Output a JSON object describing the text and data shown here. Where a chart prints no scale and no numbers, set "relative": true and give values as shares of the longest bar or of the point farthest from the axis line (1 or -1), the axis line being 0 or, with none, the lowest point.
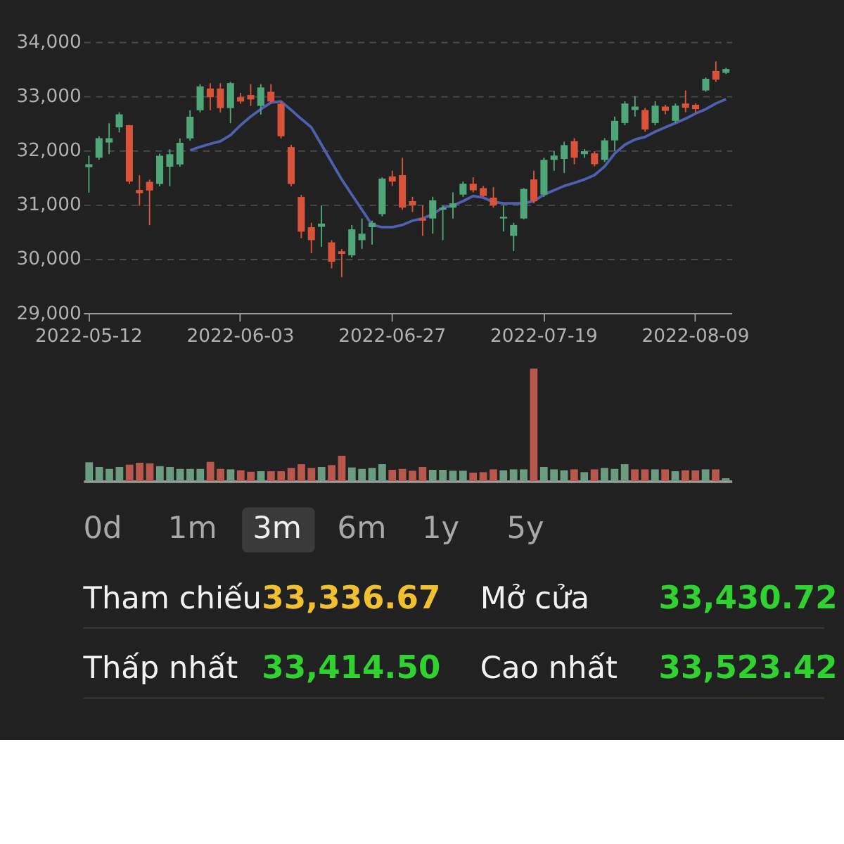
{
  "chart_data": [
    {
      "type": "candlestick",
      "categories": [
        "2022-05-12",
        null,
        null,
        null,
        null,
        null,
        null,
        null,
        null,
        null,
        null,
        null,
        null,
        null,
        null,
        "2022-06-03",
        null,
        null,
        null,
        null,
        null,
        null,
        null,
        null,
        null,
        null,
        null,
        null,
        null,
        null,
        "2022-06-27",
        null,
        null,
        null,
        null,
        null,
        null,
        null,
        null,
        null,
        null,
        null,
        null,
        null,
        null,
        "2022-07-19",
        null,
        null,
        null,
        null,
        null,
        null,
        null,
        null,
        null,
        null,
        null,
        null,
        null,
        null,
        "2022-08-09",
        null,
        null,
        null
      ],
      "ohlc": [
        [
          31690,
          31900,
          31220,
          31745
        ],
        [
          31864,
          32260,
          31824,
          32224
        ],
        [
          32144,
          32500,
          31930,
          32224
        ],
        [
          32424,
          32700,
          32330,
          32664
        ],
        [
          32464,
          32470,
          31380,
          31424
        ],
        [
          31270,
          31540,
          30980,
          31210
        ],
        [
          31420,
          31460,
          30620,
          31260
        ],
        [
          31380,
          31940,
          31340,
          31900
        ],
        [
          31700,
          32020,
          31340,
          31930
        ],
        [
          31740,
          32220,
          31700,
          32140
        ],
        [
          32220,
          32740,
          32180,
          32620
        ],
        [
          32740,
          33220,
          32700,
          33180
        ],
        [
          33140,
          33240,
          32740,
          32980
        ],
        [
          33140,
          33240,
          32700,
          32780
        ],
        [
          32780,
          33260,
          32500,
          33240
        ],
        [
          32980,
          33060,
          32860,
          32900
        ],
        [
          33020,
          33220,
          32820,
          32940
        ],
        [
          32820,
          33220,
          32660,
          33160
        ],
        [
          33080,
          33220,
          32860,
          32900
        ],
        [
          32860,
          32900,
          32220,
          32260
        ],
        [
          32060,
          32100,
          31340,
          31380
        ],
        [
          31140,
          31180,
          30380,
          30500
        ],
        [
          30584,
          30664,
          30104,
          30344
        ],
        [
          30590,
          30984,
          30224,
          30650
        ],
        [
          30304,
          30344,
          29824,
          29944
        ],
        [
          30140,
          30180,
          29660,
          30090
        ],
        [
          30064,
          30624,
          30024,
          30544
        ],
        [
          30344,
          30744,
          30184,
          30464
        ],
        [
          30584,
          30704,
          30264,
          30664
        ],
        [
          30824,
          31500,
          30784,
          31480
        ],
        [
          31520,
          31624,
          31344,
          31424
        ],
        [
          31544,
          31864,
          30904,
          30944
        ],
        [
          31064,
          31144,
          30864,
          30984
        ],
        [
          30744,
          30984,
          30424,
          30704
        ],
        [
          30744,
          31144,
          30464,
          31080
        ],
        [
          30904,
          30984,
          30344,
          30944
        ],
        [
          30944,
          31224,
          30744,
          31024
        ],
        [
          31184,
          31424,
          31144,
          31384
        ],
        [
          31384,
          31504,
          31224,
          31264
        ],
        [
          31304,
          31344,
          31144,
          31160
        ],
        [
          31128,
          31320,
          30944,
          30984
        ],
        [
          30744,
          30984,
          30504,
          30776
        ],
        [
          30424,
          30664,
          30144,
          30624
        ],
        [
          30744,
          31304,
          30728,
          31288
        ],
        [
          31464,
          31624,
          31024,
          31064
        ],
        [
          31184,
          31864,
          31144,
          31824
        ],
        [
          31824,
          31984,
          31624,
          31904
        ],
        [
          31840,
          32160,
          31584,
          32096
        ],
        [
          32168,
          32224,
          31744,
          31864
        ],
        [
          31930,
          32024,
          31864,
          31984
        ],
        [
          31944,
          31984,
          31704,
          31744
        ],
        [
          31824,
          32224,
          31784,
          32184
        ],
        [
          32184,
          32624,
          31984,
          32544
        ],
        [
          32504,
          32904,
          32464,
          32864
        ],
        [
          32744,
          33000,
          32624,
          32808
        ],
        [
          32744,
          32784,
          32344,
          32384
        ],
        [
          32504,
          32904,
          32464,
          32824
        ],
        [
          32808,
          32840,
          32664,
          32728
        ],
        [
          32544,
          32864,
          32504,
          32824
        ],
        [
          32864,
          33104,
          32704,
          32784
        ],
        [
          32840,
          32864,
          32680,
          32760
        ],
        [
          33104,
          33344,
          33080,
          33320
        ],
        [
          33464,
          33640,
          33264,
          33304
        ],
        [
          33430,
          33520,
          33410,
          33500
        ]
      ],
      "colors": [
        "#4fa679",
        "#4fa679",
        "#4fa679",
        "#4fa679",
        "#d9533b",
        "#d9533b",
        "#d9533b",
        "#4fa679",
        "#4fa679",
        "#4fa679",
        "#4fa679",
        "#4fa679",
        "#d9533b",
        "#d9533b",
        "#4fa679",
        "#d9533b",
        "#d9533b",
        "#4fa679",
        "#d9533b",
        "#d9533b",
        "#d9533b",
        "#d9533b",
        "#d9533b",
        "#4fa679",
        "#d9533b",
        "#d9533b",
        "#4fa679",
        "#4fa679",
        "#4fa679",
        "#4fa679",
        "#d9533b",
        "#d9533b",
        "#d9533b",
        "#d9533b",
        "#4fa679",
        "#4fa679",
        "#4fa679",
        "#4fa679",
        "#d9533b",
        "#d9533b",
        "#d9533b",
        "#4fa679",
        "#4fa679",
        "#4fa679",
        "#d9533b",
        "#4fa679",
        "#4fa679",
        "#4fa679",
        "#d9533b",
        "#4fa679",
        "#d9533b",
        "#4fa679",
        "#4fa679",
        "#4fa679",
        "#4fa679",
        "#d9533b",
        "#4fa679",
        "#d9533b",
        "#4fa679",
        "#d9533b",
        "#d9533b",
        "#4fa679",
        "#d9533b",
        "#4fa679"
      ],
      "series": [
        {
          "type": "line",
          "color": "#5060b0",
          "values": [
            null,
            null,
            null,
            null,
            null,
            null,
            null,
            null,
            null,
            null,
            32000,
            32064,
            32120,
            32168,
            32280,
            32464,
            32624,
            32760,
            32880,
            32904,
            32744,
            32580,
            32424,
            32104,
            31784,
            31464,
            31184,
            30904,
            30624,
            30584,
            30584,
            30624,
            30704,
            30744,
            30824,
            30944,
            30984,
            31064,
            31160,
            31128,
            31048,
            31024,
            31024,
            31024,
            31064,
            31184,
            31264,
            31344,
            31400,
            31464,
            31544,
            31704,
            31944,
            32104,
            32200,
            32248,
            32344,
            32424,
            32504,
            32584,
            32680,
            32760,
            32864,
            32944
          ]
        }
      ],
      "ylim": [
        29000,
        34000
      ],
      "yticks": [
        {
          "value": 29000,
          "label": "29,000"
        },
        {
          "value": 30000,
          "label": "30,000"
        },
        {
          "value": 31000,
          "label": "31,000"
        },
        {
          "value": 32000,
          "label": "32,000"
        },
        {
          "value": 33000,
          "label": "33,000"
        },
        {
          "value": 34000,
          "label": "34,000"
        }
      ],
      "grid": "y"
    },
    {
      "type": "bar",
      "relative": true,
      "tick_labels": false,
      "categories": [
        null,
        null,
        null,
        null,
        null,
        null,
        null,
        null,
        null,
        null,
        null,
        null,
        null,
        null,
        null,
        null,
        null,
        null,
        null,
        null,
        null,
        null,
        null,
        null,
        null,
        null,
        null,
        null,
        null,
        null,
        null,
        null,
        null,
        null,
        null,
        null,
        null,
        null,
        null,
        null,
        null,
        null,
        null,
        null,
        null,
        null,
        null,
        null,
        null,
        null,
        null,
        null,
        null,
        null,
        null,
        null,
        null,
        null,
        null,
        null,
        null,
        null,
        null,
        null
      ],
      "values": [
        0.167,
        0.125,
        0.108,
        0.125,
        0.146,
        0.163,
        0.158,
        0.133,
        0.125,
        0.108,
        0.108,
        0.108,
        0.171,
        0.108,
        0.104,
        0.096,
        0.083,
        0.088,
        0.088,
        0.088,
        0.117,
        0.15,
        0.117,
        0.125,
        0.142,
        0.225,
        0.121,
        0.108,
        0.117,
        0.15,
        0.1,
        0.108,
        0.092,
        0.125,
        0.1,
        0.1,
        0.092,
        0.092,
        0.075,
        0.079,
        0.104,
        0.096,
        0.104,
        0.104,
        1,
        0.125,
        0.104,
        0.096,
        0.104,
        0.079,
        0.104,
        0.117,
        0.108,
        0.15,
        0.104,
        0.104,
        0.104,
        0.104,
        0.088,
        0.096,
        0.096,
        0.104,
        0.104,
        0.025
      ],
      "colors": [
        "#6b9c82",
        "#6b9c82",
        "#6b9c82",
        "#6b9c82",
        "#b8574b",
        "#b8574b",
        "#b8574b",
        "#6b9c82",
        "#6b9c82",
        "#6b9c82",
        "#6b9c82",
        "#6b9c82",
        "#b8574b",
        "#b8574b",
        "#6b9c82",
        "#b8574b",
        "#b8574b",
        "#6b9c82",
        "#b8574b",
        "#b8574b",
        "#b8574b",
        "#b8574b",
        "#b8574b",
        "#6b9c82",
        "#b8574b",
        "#b8574b",
        "#6b9c82",
        "#6b9c82",
        "#6b9c82",
        "#6b9c82",
        "#b8574b",
        "#b8574b",
        "#b8574b",
        "#b8574b",
        "#6b9c82",
        "#6b9c82",
        "#6b9c82",
        "#6b9c82",
        "#b8574b",
        "#b8574b",
        "#b8574b",
        "#6b9c82",
        "#6b9c82",
        "#6b9c82",
        "#b8574b",
        "#6b9c82",
        "#6b9c82",
        "#6b9c82",
        "#b8574b",
        "#6b9c82",
        "#b8574b",
        "#6b9c82",
        "#6b9c82",
        "#6b9c82",
        "#b8574b",
        "#b8574b",
        "#6b9c82",
        "#b8574b",
        "#6b9c82",
        "#b8574b",
        "#b8574b",
        "#6b9c82",
        "#b8574b",
        "#6b9c82"
      ]
    },
    {
      "type": "other",
      "annotations": [
        "0d",
        "1m",
        "3m",
        "6m",
        "1y",
        "5y",
        "Tham chiếu",
        "33,336.67",
        "Mở cửa",
        "33,430.72",
        "Thấp nhất",
        "33,414.50",
        "Cao nhất",
        "33,523.42"
      ]
    }
  ]
}
